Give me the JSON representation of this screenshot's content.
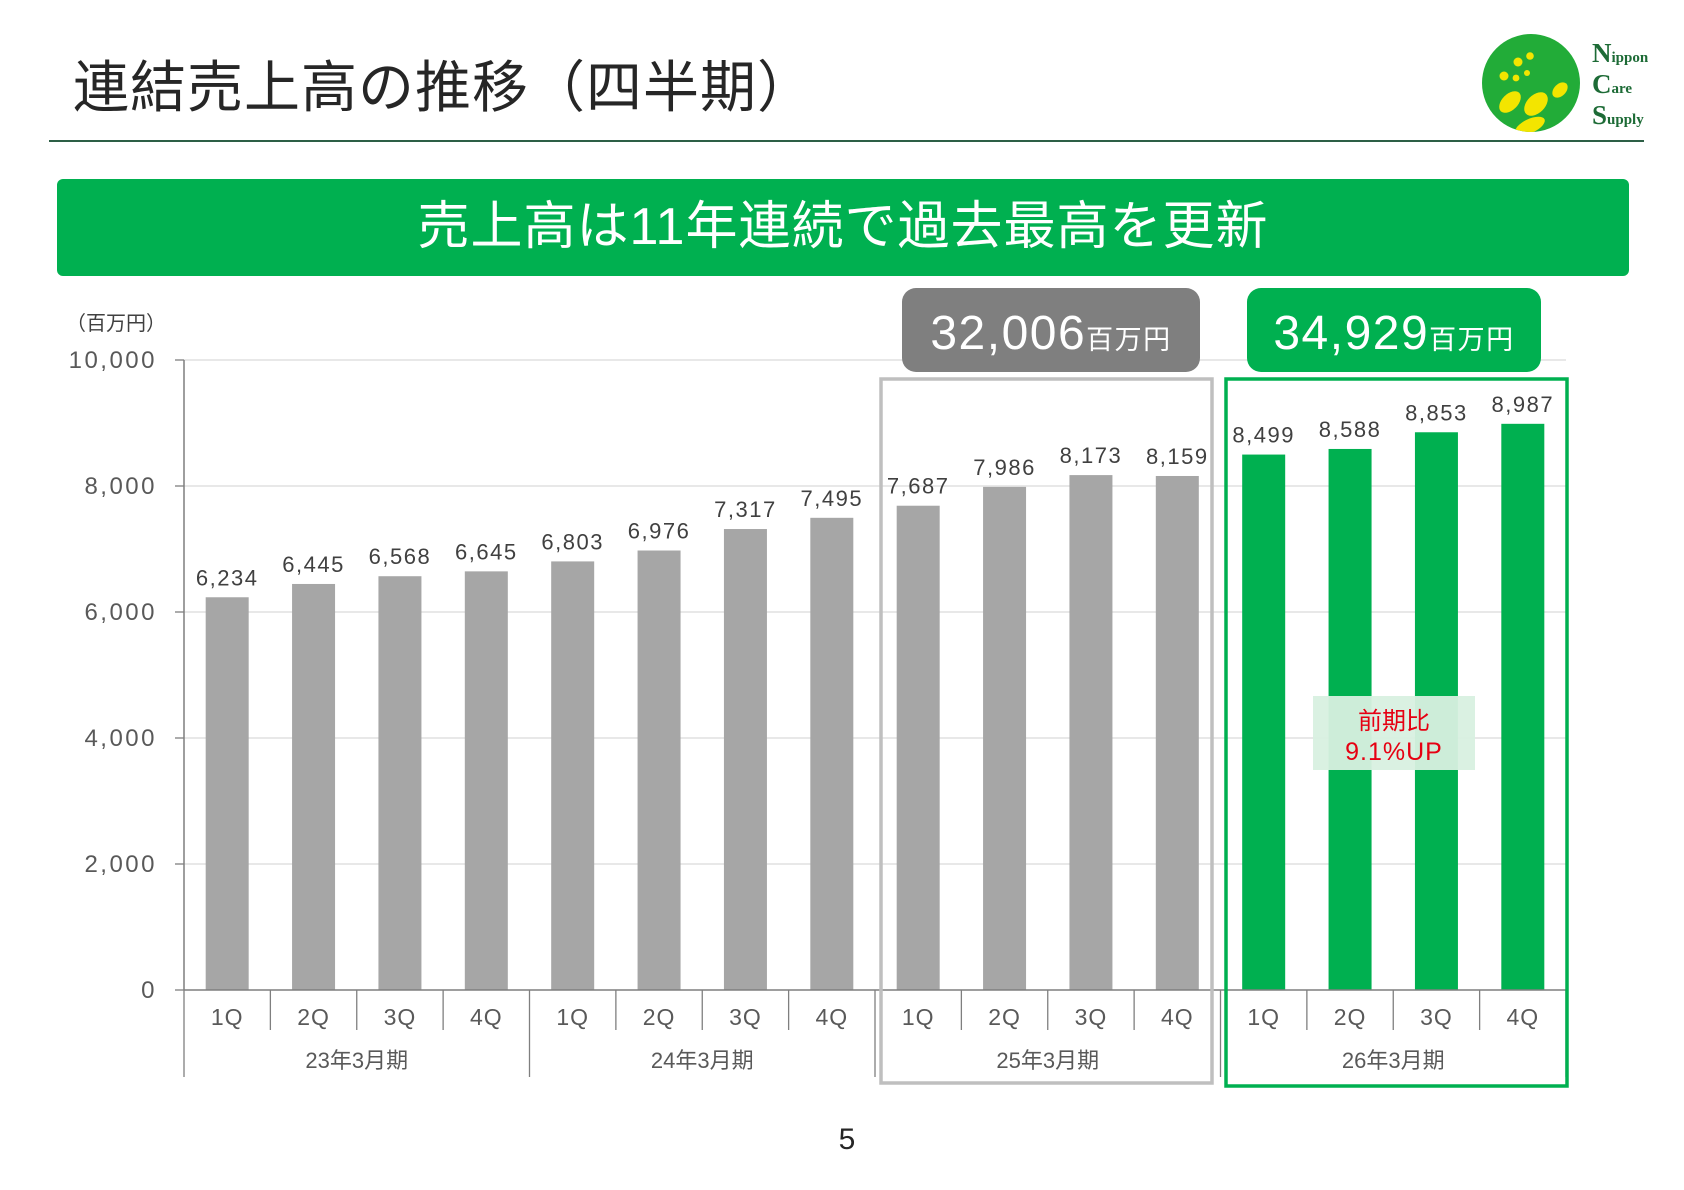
{
  "title": "連結売上高の推移（四半期）",
  "logo": {
    "lines": [
      "Nippon",
      "Care",
      "Supply"
    ],
    "circle_color": "#22ac38",
    "drop_color": "#f3e500",
    "text_color": "#1d6b36"
  },
  "banner": {
    "text": "売上高は11年連続で過去最高を更新",
    "color": "#00b050"
  },
  "page_number": "5",
  "chart_data": {
    "type": "bar",
    "ylabel": "（百万円）",
    "ylim": [
      0,
      10000
    ],
    "yticks": [
      0,
      2000,
      4000,
      6000,
      8000,
      10000
    ],
    "grid": true,
    "groups": [
      {
        "label": "23年3月期",
        "quarters": [
          "1Q",
          "2Q",
          "3Q",
          "4Q"
        ],
        "values": [
          6234,
          6445,
          6568,
          6645
        ],
        "color": "#a6a6a6"
      },
      {
        "label": "24年3月期",
        "quarters": [
          "1Q",
          "2Q",
          "3Q",
          "4Q"
        ],
        "values": [
          6803,
          6976,
          7317,
          7495
        ],
        "color": "#a6a6a6"
      },
      {
        "label": "25年3月期",
        "quarters": [
          "1Q",
          "2Q",
          "3Q",
          "4Q"
        ],
        "values": [
          7687,
          7986,
          8173,
          8159
        ],
        "color": "#a6a6a6"
      },
      {
        "label": "26年3月期",
        "quarters": [
          "1Q",
          "2Q",
          "3Q",
          "4Q"
        ],
        "values": [
          8499,
          8588,
          8853,
          8987
        ],
        "color": "#00b050"
      }
    ],
    "totals": [
      {
        "value": "32,006",
        "unit": "百万円",
        "color": "#7f7f7f",
        "box_color": "#bfbfbf"
      },
      {
        "value": "34,929",
        "unit": "百万円",
        "color": "#00b050",
        "box_color": "#00b050"
      }
    ],
    "annotation": {
      "lines": [
        "前期比",
        "9.1%UP"
      ],
      "text_color": "#e60012",
      "bg_color": "#d8f0e0"
    }
  }
}
